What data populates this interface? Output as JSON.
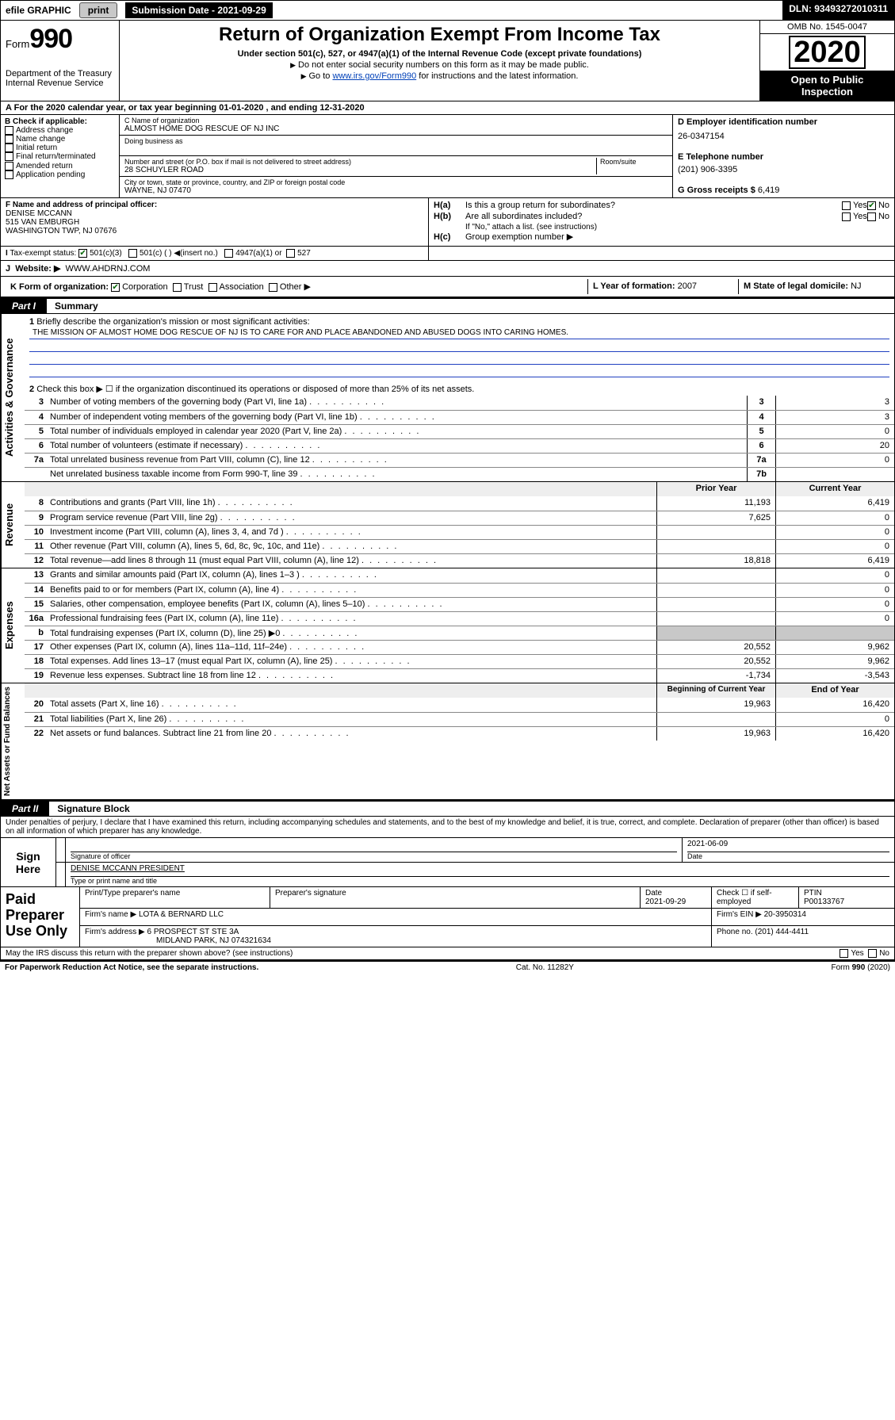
{
  "topbar": {
    "efile": "efile GRAPHIC",
    "print": "print",
    "submission_label": "Submission Date - 2021-09-29",
    "dln": "DLN: 93493272010311"
  },
  "title": {
    "form_word": "Form",
    "form_num": "990",
    "dept1": "Department of the Treasury",
    "dept2": "Internal Revenue Service",
    "main": "Return of Organization Exempt From Income Tax",
    "sub": "Under section 501(c), 527, or 4947(a)(1) of the Internal Revenue Code (except private foundations)",
    "note1": "Do not enter social security numbers on this form as it may be made public.",
    "note2_pre": "Go to ",
    "note2_link": "www.irs.gov/Form990",
    "note2_post": " for instructions and the latest information.",
    "omb": "OMB No. 1545-0047",
    "year": "2020",
    "open1": "Open to Public",
    "open2": "Inspection"
  },
  "rowA": "For the 2020 calendar year, or tax year beginning 01-01-2020    , and ending 12-31-2020",
  "colB": {
    "hdr": "B Check if applicable:",
    "items": [
      "Address change",
      "Name change",
      "Initial return",
      "Final return/terminated",
      "Amended return",
      "Application pending"
    ]
  },
  "c": {
    "name_lbl": "C Name of organization",
    "name": "ALMOST HOME DOG RESCUE OF NJ INC",
    "dba_lbl": "Doing business as",
    "addr_lbl": "Number and street (or P.O. box if mail is not delivered to street address)",
    "room_lbl": "Room/suite",
    "addr": "28 SCHUYLER ROAD",
    "city_lbl": "City or town, state or province, country, and ZIP or foreign postal code",
    "city": "WAYNE, NJ  07470"
  },
  "d": {
    "lbl": "D Employer identification number",
    "val": "26-0347154"
  },
  "e": {
    "lbl": "E Telephone number",
    "val": "(201) 906-3395"
  },
  "g": {
    "lbl": "G Gross receipts $",
    "val": "6,419"
  },
  "f": {
    "lbl": "F  Name and address of principal officer:",
    "line1": "DENISE MCCANN",
    "line2": "515 VAN EMBURGH",
    "line3": "WASHINGTON TWP, NJ  07676"
  },
  "h": {
    "ha_lbl": "H(a)",
    "ha_txt": "Is this a group return for subordinates?",
    "hb_lbl": "H(b)",
    "hb_txt": "Are all subordinates included?",
    "hb_note": "If \"No,\" attach a list. (see instructions)",
    "hc_lbl": "H(c)",
    "hc_txt": "Group exemption number ▶",
    "yes": "Yes",
    "no": "No"
  },
  "i": {
    "lbl": "Tax-exempt status:",
    "opts": [
      "501(c)(3)",
      "501(c) (  ) ◀(insert no.)",
      "4947(a)(1) or",
      "527"
    ]
  },
  "j": {
    "lbl": "J",
    "txt": "Website: ▶",
    "val": "WWW.AHDRNJ.COM"
  },
  "k": {
    "lbl": "K Form of organization:",
    "opts": [
      "Corporation",
      "Trust",
      "Association",
      "Other ▶"
    ]
  },
  "l": {
    "lbl": "L Year of formation:",
    "val": "2007"
  },
  "m": {
    "lbl": "M State of legal domicile:",
    "val": "NJ"
  },
  "parts": {
    "p1": "Part I",
    "p1t": "Summary",
    "p2": "Part II",
    "p2t": "Signature Block"
  },
  "p1": {
    "l1_lbl": "1",
    "l1_txt": "Briefly describe the organization's mission or most significant activities:",
    "l1_mission": "THE MISSION OF ALMOST HOME DOG RESCUE OF NJ IS TO CARE FOR AND PLACE ABANDONED AND ABUSED DOGS INTO CARING HOMES.",
    "l2": "Check this box ▶ ☐  if the organization discontinued its operations or disposed of more than 25% of its net assets.",
    "lines_ag": [
      {
        "n": "3",
        "d": "Number of voting members of the governing body (Part VI, line 1a)",
        "box": "3",
        "v": "3"
      },
      {
        "n": "4",
        "d": "Number of independent voting members of the governing body (Part VI, line 1b)",
        "box": "4",
        "v": "3"
      },
      {
        "n": "5",
        "d": "Total number of individuals employed in calendar year 2020 (Part V, line 2a)",
        "box": "5",
        "v": "0"
      },
      {
        "n": "6",
        "d": "Total number of volunteers (estimate if necessary)",
        "box": "6",
        "v": "20"
      },
      {
        "n": "7a",
        "d": "Total unrelated business revenue from Part VIII, column (C), line 12",
        "box": "7a",
        "v": "0"
      },
      {
        "n": "",
        "d": "Net unrelated business taxable income from Form 990-T, line 39",
        "box": "7b",
        "v": ""
      }
    ],
    "col_prior": "Prior Year",
    "col_curr": "Current Year",
    "lines_rev": [
      {
        "n": "8",
        "d": "Contributions and grants (Part VIII, line 1h)",
        "p": "11,193",
        "c": "6,419"
      },
      {
        "n": "9",
        "d": "Program service revenue (Part VIII, line 2g)",
        "p": "7,625",
        "c": "0"
      },
      {
        "n": "10",
        "d": "Investment income (Part VIII, column (A), lines 3, 4, and 7d )",
        "p": "",
        "c": "0"
      },
      {
        "n": "11",
        "d": "Other revenue (Part VIII, column (A), lines 5, 6d, 8c, 9c, 10c, and 11e)",
        "p": "",
        "c": "0"
      },
      {
        "n": "12",
        "d": "Total revenue—add lines 8 through 11 (must equal Part VIII, column (A), line 12)",
        "p": "18,818",
        "c": "6,419"
      }
    ],
    "lines_exp": [
      {
        "n": "13",
        "d": "Grants and similar amounts paid (Part IX, column (A), lines 1–3 )",
        "p": "",
        "c": "0"
      },
      {
        "n": "14",
        "d": "Benefits paid to or for members (Part IX, column (A), line 4)",
        "p": "",
        "c": "0"
      },
      {
        "n": "15",
        "d": "Salaries, other compensation, employee benefits (Part IX, column (A), lines 5–10)",
        "p": "",
        "c": "0"
      },
      {
        "n": "16a",
        "d": "Professional fundraising fees (Part IX, column (A), line 11e)",
        "p": "",
        "c": "0"
      },
      {
        "n": "b",
        "d": "Total fundraising expenses (Part IX, column (D), line 25) ▶0",
        "p": "shade",
        "c": "shade"
      },
      {
        "n": "17",
        "d": "Other expenses (Part IX, column (A), lines 11a–11d, 11f–24e)",
        "p": "20,552",
        "c": "9,962"
      },
      {
        "n": "18",
        "d": "Total expenses. Add lines 13–17 (must equal Part IX, column (A), line 25)",
        "p": "20,552",
        "c": "9,962"
      },
      {
        "n": "19",
        "d": "Revenue less expenses. Subtract line 18 from line 12",
        "p": "-1,734",
        "c": "-3,543"
      }
    ],
    "col_begin": "Beginning of Current Year",
    "col_end": "End of Year",
    "lines_na": [
      {
        "n": "20",
        "d": "Total assets (Part X, line 16)",
        "p": "19,963",
        "c": "16,420"
      },
      {
        "n": "21",
        "d": "Total liabilities (Part X, line 26)",
        "p": "",
        "c": "0"
      },
      {
        "n": "22",
        "d": "Net assets or fund balances. Subtract line 21 from line 20",
        "p": "19,963",
        "c": "16,420"
      }
    ],
    "side_labels": {
      "ag": "Activities & Governance",
      "rev": "Revenue",
      "exp": "Expenses",
      "na": "Net Assets or\nFund Balances"
    }
  },
  "p2": {
    "decl": "Under penalties of perjury, I declare that I have examined this return, including accompanying schedules and statements, and to the best of my knowledge and belief, it is true, correct, and complete. Declaration of preparer (other than officer) is based on all information of which preparer has any knowledge.",
    "sign_here": "Sign Here",
    "sig_officer_lbl": "Signature of officer",
    "date": "2021-06-09",
    "date_lbl": "Date",
    "officer_name": "DENISE MCCANN  PRESIDENT",
    "officer_name_lbl": "Type or print name and title",
    "paid_hdr": "Paid Preparer Use Only",
    "pp_name_lbl": "Print/Type preparer's name",
    "pp_sig_lbl": "Preparer's signature",
    "pp_date_lbl": "Date",
    "pp_date": "2021-09-29",
    "pp_check_lbl": "Check ☐ if self-employed",
    "ptin_lbl": "PTIN",
    "ptin": "P00133767",
    "firm_name_lbl": "Firm's name    ▶",
    "firm_name": "LOTA & BERNARD LLC",
    "firm_ein_lbl": "Firm's EIN ▶",
    "firm_ein": "20-3950314",
    "firm_addr_lbl": "Firm's address ▶",
    "firm_addr1": "6 PROSPECT ST STE 3A",
    "firm_addr2": "MIDLAND PARK, NJ  074321634",
    "phone_lbl": "Phone no.",
    "phone": "(201) 444-4411",
    "discuss": "May the IRS discuss this return with the preparer shown above? (see instructions)",
    "yes": "Yes",
    "no": "No"
  },
  "footer": {
    "pra": "For Paperwork Reduction Act Notice, see the separate instructions.",
    "cat": "Cat. No. 11282Y",
    "form": "Form 990 (2020)"
  }
}
